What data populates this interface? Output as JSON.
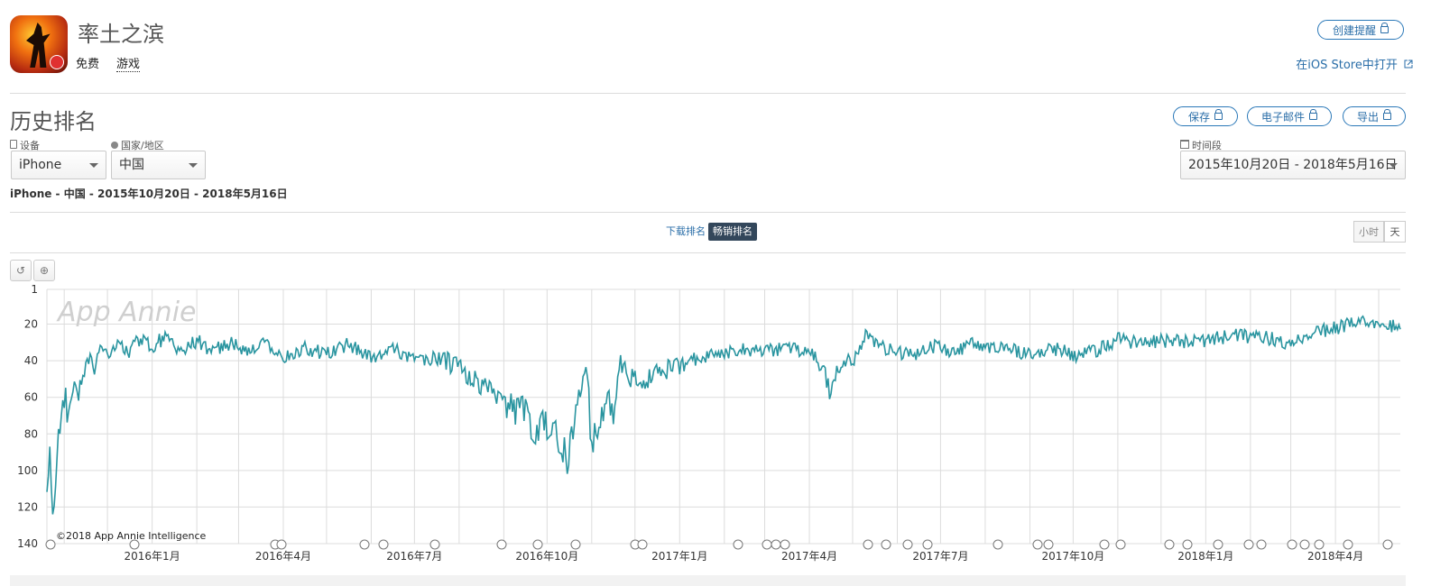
{
  "app": {
    "name": "率土之滨",
    "price": "免费",
    "category": "游戏",
    "create_alert": "创建提醒",
    "open_ios": "在iOS Store中打开"
  },
  "section": {
    "title": "历史排名",
    "save": "保存",
    "email": "电子邮件",
    "export": "导出"
  },
  "filters": {
    "device_label": "设备",
    "device_value": "iPhone",
    "country_label": "国家/地区",
    "country_value": "中国",
    "period_label": "时间段",
    "period_value": "2015年10月20日 - 2018年5月16日",
    "summary": "iPhone - 中国 - 2015年10月20日 - 2018年5月16日"
  },
  "tabs": {
    "download": "下载排名",
    "grossing": "畅销排名",
    "hour": "小时",
    "day": "天"
  },
  "colors": {
    "line": "#2a95a0",
    "grid": "#dcdcdc",
    "accent": "#2a6ea8",
    "tab_active": "#33475b"
  },
  "chart_data": {
    "type": "line",
    "watermark": "App Annie",
    "copyright": "©2018 App Annie Intelligence",
    "y_axis": {
      "reversed": true,
      "min": 1,
      "max": 140,
      "ticks": [
        1,
        20,
        40,
        60,
        80,
        100,
        120,
        140
      ]
    },
    "x_axis": {
      "start": "2015-10-20",
      "end": "2018-05-16",
      "ticks": [
        "2016年1月",
        "2016年4月",
        "2016年7月",
        "2016年10月",
        "2017年1月",
        "2017年4月",
        "2017年7月",
        "2017年10月",
        "2018年1月",
        "2018年4月"
      ]
    },
    "grid": true,
    "series": [
      {
        "points": [
          [
            "2015-10-20",
            121
          ],
          [
            "2015-10-22",
            78
          ],
          [
            "2015-10-24",
            126
          ],
          [
            "2015-10-27",
            90
          ],
          [
            "2015-10-30",
            75
          ],
          [
            "2015-11-02",
            62
          ],
          [
            "2015-11-05",
            70
          ],
          [
            "2015-11-08",
            55
          ],
          [
            "2015-11-11",
            60
          ],
          [
            "2015-11-14",
            45
          ],
          [
            "2015-11-18",
            38
          ],
          [
            "2015-11-22",
            42
          ],
          [
            "2015-11-27",
            33
          ],
          [
            "2015-12-02",
            38
          ],
          [
            "2015-12-08",
            30
          ],
          [
            "2015-12-15",
            36
          ],
          [
            "2015-12-22",
            28
          ],
          [
            "2016-01-01",
            32
          ],
          [
            "2016-01-10",
            27
          ],
          [
            "2016-01-20",
            34
          ],
          [
            "2016-02-01",
            29
          ],
          [
            "2016-02-12",
            35
          ],
          [
            "2016-02-25",
            30
          ],
          [
            "2016-03-08",
            36
          ],
          [
            "2016-03-20",
            30
          ],
          [
            "2016-04-01",
            38
          ],
          [
            "2016-04-15",
            33
          ],
          [
            "2016-05-01",
            36
          ],
          [
            "2016-05-15",
            31
          ],
          [
            "2016-06-01",
            38
          ],
          [
            "2016-06-15",
            33
          ],
          [
            "2016-07-01",
            40
          ],
          [
            "2016-07-15",
            38
          ],
          [
            "2016-08-01",
            44
          ],
          [
            "2016-08-15",
            52
          ],
          [
            "2016-09-01",
            60
          ],
          [
            "2016-09-15",
            70
          ],
          [
            "2016-09-25",
            78
          ],
          [
            "2016-10-05",
            74
          ],
          [
            "2016-10-15",
            94
          ],
          [
            "2016-10-22",
            62
          ],
          [
            "2016-10-28",
            40
          ],
          [
            "2016-11-01",
            86
          ],
          [
            "2016-11-08",
            74
          ],
          [
            "2016-11-12",
            57
          ],
          [
            "2016-11-16",
            68
          ],
          [
            "2016-11-20",
            42
          ],
          [
            "2016-11-26",
            47
          ],
          [
            "2016-12-05",
            54
          ],
          [
            "2016-12-15",
            48
          ],
          [
            "2017-01-01",
            42
          ],
          [
            "2017-01-20",
            37
          ],
          [
            "2017-02-10",
            34
          ],
          [
            "2017-03-01",
            35
          ],
          [
            "2017-03-20",
            33
          ],
          [
            "2017-04-05",
            36
          ],
          [
            "2017-04-15",
            55
          ],
          [
            "2017-04-20",
            45
          ],
          [
            "2017-05-01",
            40
          ],
          [
            "2017-05-10",
            27
          ],
          [
            "2017-05-25",
            34
          ],
          [
            "2017-06-10",
            37
          ],
          [
            "2017-06-25",
            32
          ],
          [
            "2017-07-10",
            36
          ],
          [
            "2017-07-25",
            30
          ],
          [
            "2017-08-10",
            33
          ],
          [
            "2017-09-01",
            36
          ],
          [
            "2017-09-20",
            34
          ],
          [
            "2017-10-05",
            38
          ],
          [
            "2017-10-20",
            33
          ],
          [
            "2017-11-01",
            28
          ],
          [
            "2017-11-15",
            31
          ],
          [
            "2017-12-01",
            29
          ],
          [
            "2017-12-20",
            30
          ],
          [
            "2018-01-05",
            28
          ],
          [
            "2018-01-25",
            26
          ],
          [
            "2018-02-15",
            28
          ],
          [
            "2018-03-01",
            30
          ],
          [
            "2018-03-15",
            25
          ],
          [
            "2018-04-01",
            22
          ],
          [
            "2018-04-15",
            20
          ],
          [
            "2018-04-25",
            18
          ],
          [
            "2018-05-05",
            22
          ],
          [
            "2018-05-16",
            19
          ]
        ]
      }
    ]
  }
}
